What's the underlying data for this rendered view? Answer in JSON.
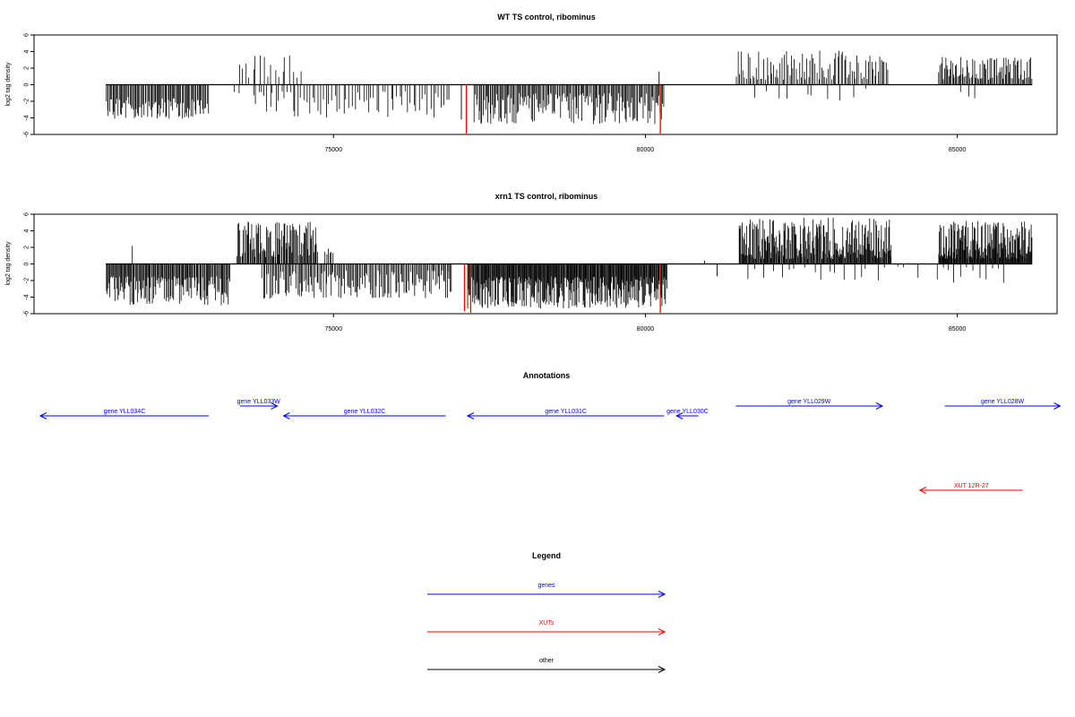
{
  "chart_data": [
    {
      "type": "bar",
      "title": "WT TS control, ribominus",
      "ylabel": "log2 tag density",
      "xlim": [
        70200,
        86600
      ],
      "ylim": [
        -6,
        6
      ],
      "xticks": [
        75000,
        80000,
        85000
      ],
      "yticks": [
        -6,
        -4,
        -2,
        0,
        2,
        4,
        6
      ],
      "baseline_range": [
        71350,
        86200
      ],
      "colors": {
        "default": "#000000",
        "highlight": "#ff0000"
      },
      "segments": [
        {
          "strand": "minus",
          "x": [
            71350,
            73000
          ],
          "h": [
            1.5,
            4.2
          ],
          "n": 95
        },
        {
          "strand": "minus",
          "x": [
            73400,
            73500
          ],
          "h": [
            0.8,
            1.6
          ],
          "n": 2
        },
        {
          "strand": "plus",
          "x": [
            73450,
            74500
          ],
          "h": [
            0.8,
            3.6
          ],
          "n": 18
        },
        {
          "strand": "minus",
          "x": [
            73700,
            76850
          ],
          "h": [
            0.8,
            4.0
          ],
          "n": 70
        },
        {
          "strand": "minus",
          "x": [
            77250,
            80300
          ],
          "h": [
            1.0,
            4.8
          ],
          "n": 170
        },
        {
          "strand": "plus",
          "x": [
            81450,
            83900
          ],
          "h": [
            0.6,
            4.2
          ],
          "n": 95
        },
        {
          "strand": "minus",
          "x": [
            81600,
            83700
          ],
          "h": [
            0.5,
            2.0
          ],
          "n": 10
        },
        {
          "strand": "plus",
          "x": [
            84700,
            86200
          ],
          "h": [
            0.6,
            3.4
          ],
          "n": 85
        },
        {
          "strand": "minus",
          "x": [
            85000,
            85400
          ],
          "h": [
            0.5,
            2.0
          ],
          "n": 3
        }
      ],
      "highlights": [
        {
          "x": 77130,
          "y": -5.9
        },
        {
          "x": 80240,
          "y": -5.9
        }
      ],
      "extras": [
        {
          "x": 80220,
          "y": 1.6
        },
        {
          "x": 76850,
          "y": -1.8
        },
        {
          "x": 77050,
          "y": -4.2
        }
      ]
    },
    {
      "type": "bar",
      "title": "xrn1 TS control, ribominus",
      "ylabel": "log2 tag density",
      "xlim": [
        70200,
        86600
      ],
      "ylim": [
        -6,
        6
      ],
      "xticks": [
        75000,
        80000,
        85000
      ],
      "yticks": [
        -6,
        -4,
        -2,
        0,
        2,
        4,
        6
      ],
      "baseline_range": [
        71350,
        86200
      ],
      "colors": {
        "default": "#000000",
        "highlight": "#ff0000"
      },
      "segments": [
        {
          "strand": "minus",
          "x": [
            71350,
            73350
          ],
          "h": [
            1.5,
            5.0
          ],
          "n": 140
        },
        {
          "strand": "plus",
          "x": [
            71750,
            71800
          ],
          "h": [
            2.2,
            2.2
          ],
          "n": 1
        },
        {
          "strand": "plus",
          "x": [
            73450,
            74750
          ],
          "h": [
            0.8,
            5.1
          ],
          "n": 90
        },
        {
          "strand": "minus",
          "x": [
            73850,
            76900
          ],
          "h": [
            0.8,
            4.2
          ],
          "n": 150
        },
        {
          "strand": "plus",
          "x": [
            74850,
            75000
          ],
          "h": [
            1.0,
            2.3
          ],
          "n": 6
        },
        {
          "strand": "minus",
          "x": [
            77150,
            80350
          ],
          "h": [
            1.5,
            5.4
          ],
          "n": 300
        },
        {
          "strand": "plus",
          "x": [
            81500,
            83950
          ],
          "h": [
            0.6,
            5.6
          ],
          "n": 220
        },
        {
          "strand": "minus",
          "x": [
            81600,
            83900
          ],
          "h": [
            0.4,
            2.0
          ],
          "n": 18
        },
        {
          "strand": "plus",
          "x": [
            84700,
            86200
          ],
          "h": [
            0.6,
            5.2
          ],
          "n": 160
        },
        {
          "strand": "minus",
          "x": [
            84650,
            85800
          ],
          "h": [
            0.4,
            2.4
          ],
          "n": 12
        },
        {
          "strand": "minus",
          "x": [
            84000,
            84400
          ],
          "h": [
            0.3,
            2.0
          ],
          "n": 3
        }
      ],
      "highlights": [
        {
          "x": 77100,
          "y": -5.7
        },
        {
          "x": 77200,
          "y": -5.9
        },
        {
          "x": 80240,
          "y": -5.9
        }
      ],
      "extras": [
        {
          "x": 80950,
          "y": 0.4
        },
        {
          "x": 81150,
          "y": -1.5
        },
        {
          "x": 76850,
          "y": -1.8
        }
      ]
    }
  ],
  "annotations": {
    "title": "Annotations",
    "items": [
      {
        "label": "gene YLL034C",
        "color": "#0000ff",
        "x1": 73000,
        "x2": 70300,
        "row": 1
      },
      {
        "label": "gene YLL033W",
        "color": "#0000ff",
        "x1": 73500,
        "x2": 74100,
        "row": 0
      },
      {
        "label": "gene YLL032C",
        "color": "#0000ff",
        "x1": 76800,
        "x2": 74200,
        "row": 1
      },
      {
        "label": "gene YLL031C",
        "color": "#0000ff",
        "x1": 80300,
        "x2": 77150,
        "row": 1
      },
      {
        "label": "gene YLL030C",
        "color": "#0000ff",
        "x1": 80850,
        "x2": 80500,
        "row": 1
      },
      {
        "label": "gene YLL029W",
        "color": "#0000ff",
        "x1": 81450,
        "x2": 83800,
        "row": 0
      },
      {
        "label": "gene YLL028W",
        "color": "#0000ff",
        "x1": 84800,
        "x2": 86650,
        "row": 0
      },
      {
        "label": "XUT 12R-27",
        "color": "#ff0000",
        "x1": 86050,
        "x2": 84400,
        "row": 2
      }
    ]
  },
  "legend": {
    "title": "Legend",
    "items": [
      {
        "label": "genes",
        "color": "#0000ff"
      },
      {
        "label": "XUTs",
        "color": "#ff0000"
      },
      {
        "label": "other",
        "color": "#000000"
      }
    ]
  }
}
